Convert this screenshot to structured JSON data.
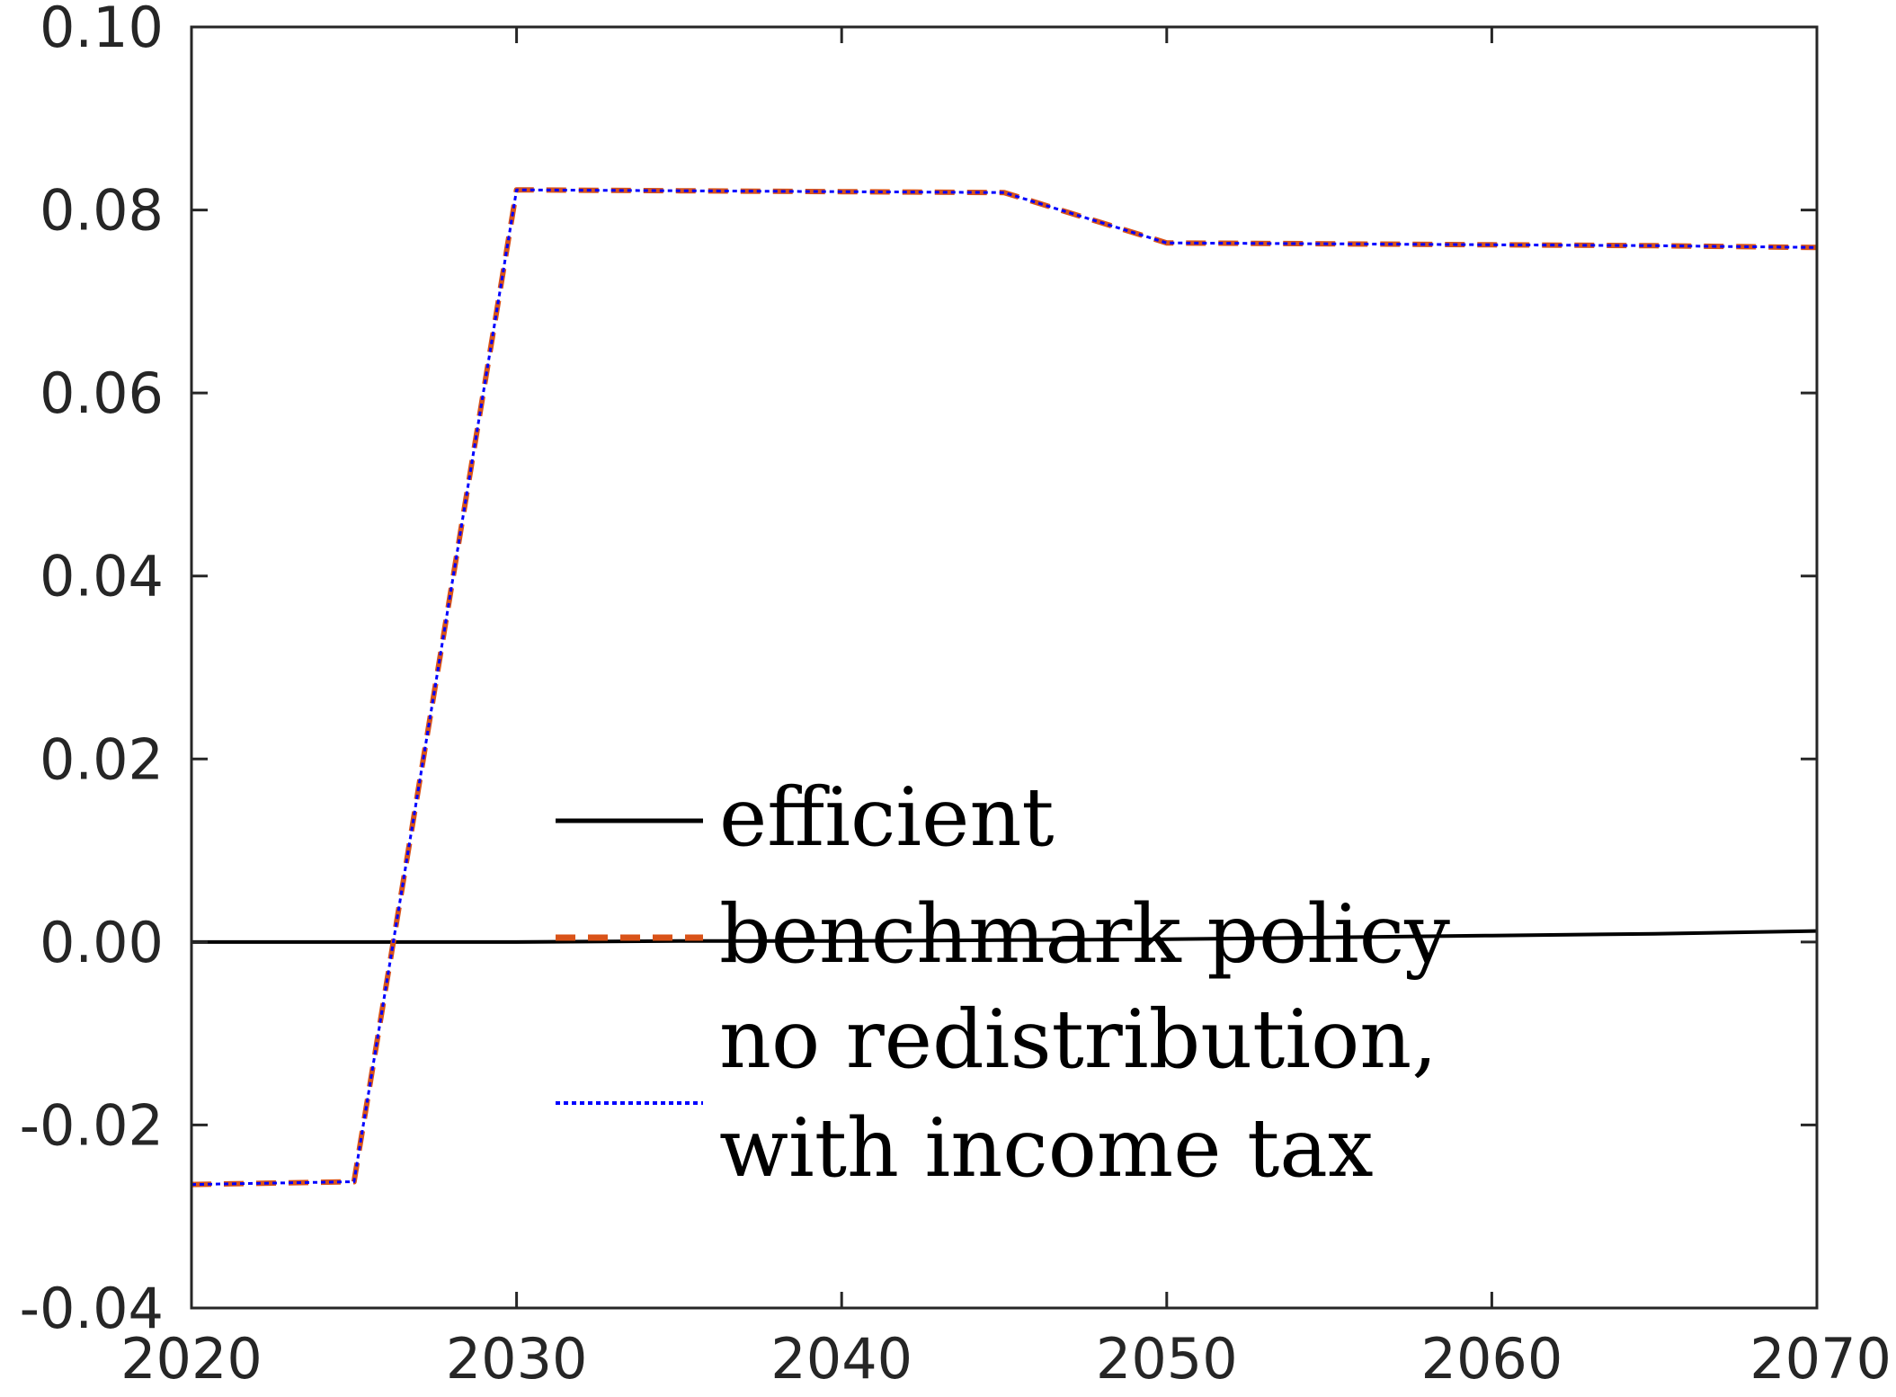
{
  "chart_data": {
    "type": "line",
    "title": "",
    "xlabel": "",
    "ylabel": "",
    "xlim": [
      2020,
      2070
    ],
    "ylim": [
      -0.04,
      0.1
    ],
    "x_ticks": [
      2020,
      2030,
      2040,
      2050,
      2060,
      2070
    ],
    "x_tick_labels": [
      "2020",
      "2030",
      "2040",
      "2050",
      "2060",
      "2070"
    ],
    "y_ticks": [
      -0.04,
      -0.02,
      0.0,
      0.02,
      0.04,
      0.06,
      0.08,
      0.1
    ],
    "y_tick_labels": [
      "-0.04",
      "-0.02",
      "0.00",
      "0.02",
      "0.04",
      "0.06",
      "0.08",
      "0.10"
    ],
    "grid": false,
    "legend_position": "center",
    "series": [
      {
        "name": "efficient",
        "color": "#000000",
        "style": "solid",
        "x": [
          2020,
          2025,
          2030,
          2035,
          2040,
          2045,
          2050,
          2055,
          2060,
          2065,
          2070
        ],
        "y": [
          0.0,
          0.0,
          0.0,
          0.0001,
          0.0001,
          0.0002,
          0.0003,
          0.0005,
          0.0007,
          0.0009,
          0.0012
        ]
      },
      {
        "name": "benchmark policy",
        "color": "#D95319",
        "style": "dashed",
        "x": [
          2020,
          2025,
          2030,
          2035,
          2040,
          2045,
          2050,
          2055,
          2060,
          2065,
          2070
        ],
        "y": [
          -0.0265,
          -0.0262,
          0.0822,
          0.0821,
          0.082,
          0.0819,
          0.0764,
          0.0763,
          0.0762,
          0.0761,
          0.0759
        ]
      },
      {
        "name": "no redistribution, with income tax",
        "color": "#0000FF",
        "style": "dotted",
        "x": [
          2020,
          2025,
          2030,
          2035,
          2040,
          2045,
          2050,
          2055,
          2060,
          2065,
          2070
        ],
        "y": [
          -0.0265,
          -0.0262,
          0.0822,
          0.0821,
          0.082,
          0.0819,
          0.0764,
          0.0763,
          0.0762,
          0.0761,
          0.0759
        ]
      }
    ],
    "legend_lines": [
      [
        "efficient"
      ],
      [
        "benchmark policy"
      ],
      [
        "no redistribution,",
        "with income tax"
      ]
    ]
  }
}
